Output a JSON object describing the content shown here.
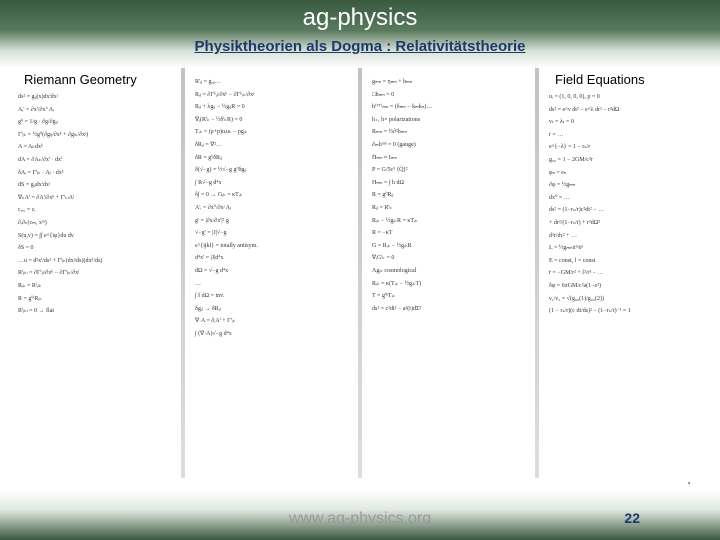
{
  "header": {
    "title": "ag-physics",
    "subtitle": "Physiktheorien als Dogma : Relativitätstheorie"
  },
  "columns": [
    {
      "header": "Riemann Geometry",
      "equations": [
        "ds² = gᵢⱼ(x)dxⁱdxʲ",
        "Aᵢ' = ∂xⁱ/∂x'ⁱ Aᵢ",
        "gⁱʲ = 1/g · ∂g/∂gᵢⱼ",
        "Γⁱⱼₖ = ½gⁱˡ(∂gₗⱼ/∂xᵏ + ∂gₗₖ/∂xʲ)",
        "A = Aₖdxᵏ",
        "dA = ∂Aₖ/∂xⁱ · dxⁱ",
        "δAᵢ = Γⁱⱼₖ · Aⱼ · dxᵏ",
        "dS = gᵢⱼdxⁱdxʲ",
        "∇ₖAⁱ = ∂Aⁱ/∂xᵏ + ΓⁱₖₗAˡ",
        "cₓᵢᵤ = cᵢ",
        "∂ᵢ∂ₖ(cₘ, xᵐ)",
        "S(u,v) = ∫∫ e^{iφ}du dv",
        "δS = 0",
        "…u = d²xⁱ/ds² + Γⁱⱼₖ(dxʲ/ds)(dxᵏ/ds)",
        "Rⁱⱼₖₗ = ∂Γⁱⱼₗ/∂xᵏ − ∂Γⁱⱼₖ/∂xˡ",
        "Rᵢₖ = Rˡᵢₗₖ",
        "R = gⁱᵏRᵢₖ",
        "Rⁱⱼₖₗ = 0 → flat"
      ]
    },
    {
      "header": "",
      "equations": [
        "R'ᵢⱼ = gₐᵦ…",
        "Rᵢⱼ = ∂Γᵏᵢⱼ/∂xᵏ − ∂Γᵏᵢₖ/∂xʲ",
        "Rᵢⱼ + λgᵢⱼ − ½gᵢⱼR = 0",
        "∇ᵢ(Rⁱₖ − ½δⁱₖR) = 0",
        "Tᵢₖ = (ρ+p)uᵢuₖ − pgᵢₖ",
        "δRᵢⱼ = ∇²…",
        "δR = gⁱʲδRᵢⱼ",
        "δ(√−g) = ½√−g gⁱʲδgᵢⱼ",
        "∫ R√−g d⁴x",
        "δ∫ = 0 → Gᵢₖ = κTᵢₖ",
        "A'ᵢ = ∂x'ⁱ/∂xʲ Aⱼ",
        "g' = |∂x/∂x'|² g",
        "√−g' = |J|√−g",
        "ε^{ijkl} = totally antisym.",
        "d⁴x' = |J|d⁴x",
        "dΩ = √−g d⁴x",
        "…",
        "∫ f dΩ = inv.",
        "δgᵢⱼ → δRᵢⱼ",
        "∇·A = ∂ᵢAⁱ + Γⁱᵢₖ",
        "∫ (∇·A)√−g d⁴x"
      ]
    },
    {
      "header": "",
      "equations": [
        "gₘₙ = ηₘₙ + hₘₙ",
        "□hₘₙ = 0",
        "h⁽ᵀᵀ⁾ₘₙ = (δₘₙ − kₘkₙ)…",
        "h₊, h× polarizations",
        "Rₘₙ = ½∂²hₘₙ",
        "∂ₘhᵐⁿ = 0 (gauge)",
        "Ḧₘₙ ≈ Iₘₙ",
        "P = G/5c⁵ ⟨Q̈⟩²",
        "Hₘₙ = ∫ h dΩ",
        "R = gⁱʲRᵢⱼ",
        "Rᵢⱼ = Rⁱₖ",
        "Rᵢₖ − ½gᵢₖR = κTᵢₖ",
        "R = −κT",
        "G = Rᵢₖ − ½gᵢₖR",
        "∇ᵢGⁱₖ = 0",
        "Λgᵢₖ cosmological",
        "Rᵢₖ = κ(Tᵢₖ − ½gᵢₖT)",
        "T = gⁱᵏTᵢₖ",
        "ds² = c²dt² − a²(t)dΣ²"
      ]
    },
    {
      "header": "Field Equations",
      "equations": [
        "uᵢ = (1, 0, 0, 0), p = 0",
        "ds² = e^ν dt² − e^λ dr² − r²dΩ",
        "νₜ = λₜ = 0",
        "r = …",
        "e^{−λ} = 1 − rₛ/r",
        "g₀₀ = 1 − 2GM/c²r",
        "φₙ = eₙ",
        "∂φ = ½gₘₙ",
        "dx⁰ = …",
        "ds² = (1−rₛ/r)c²dt² − …",
        "+ dr²/(1−rₛ/r) + r²dΩ²",
        "d²r/dτ² + …",
        "L = ½gₘₙẋᵐẋⁿ",
        "E = const, l = const",
        "r̈ = −GM/r² + l²/r³ − …",
        "δφ = 6πGM/c²a(1−e²)",
        "ν₁/ν₂ = √(g₀₀(1)/g₀₀(2))",
        "(1 − rₛ/r)(c dt/ds)² − (1−rₛ/r)⁻¹ = 1"
      ]
    }
  ],
  "footer": {
    "url": "www.ag-physics.org",
    "pageNumSup": "22",
    "pageNumMain": "22",
    "quote": "'"
  },
  "style": {
    "headerGradStart": "#3a5a3f",
    "subtitleColor": "#1a3a6a"
  }
}
